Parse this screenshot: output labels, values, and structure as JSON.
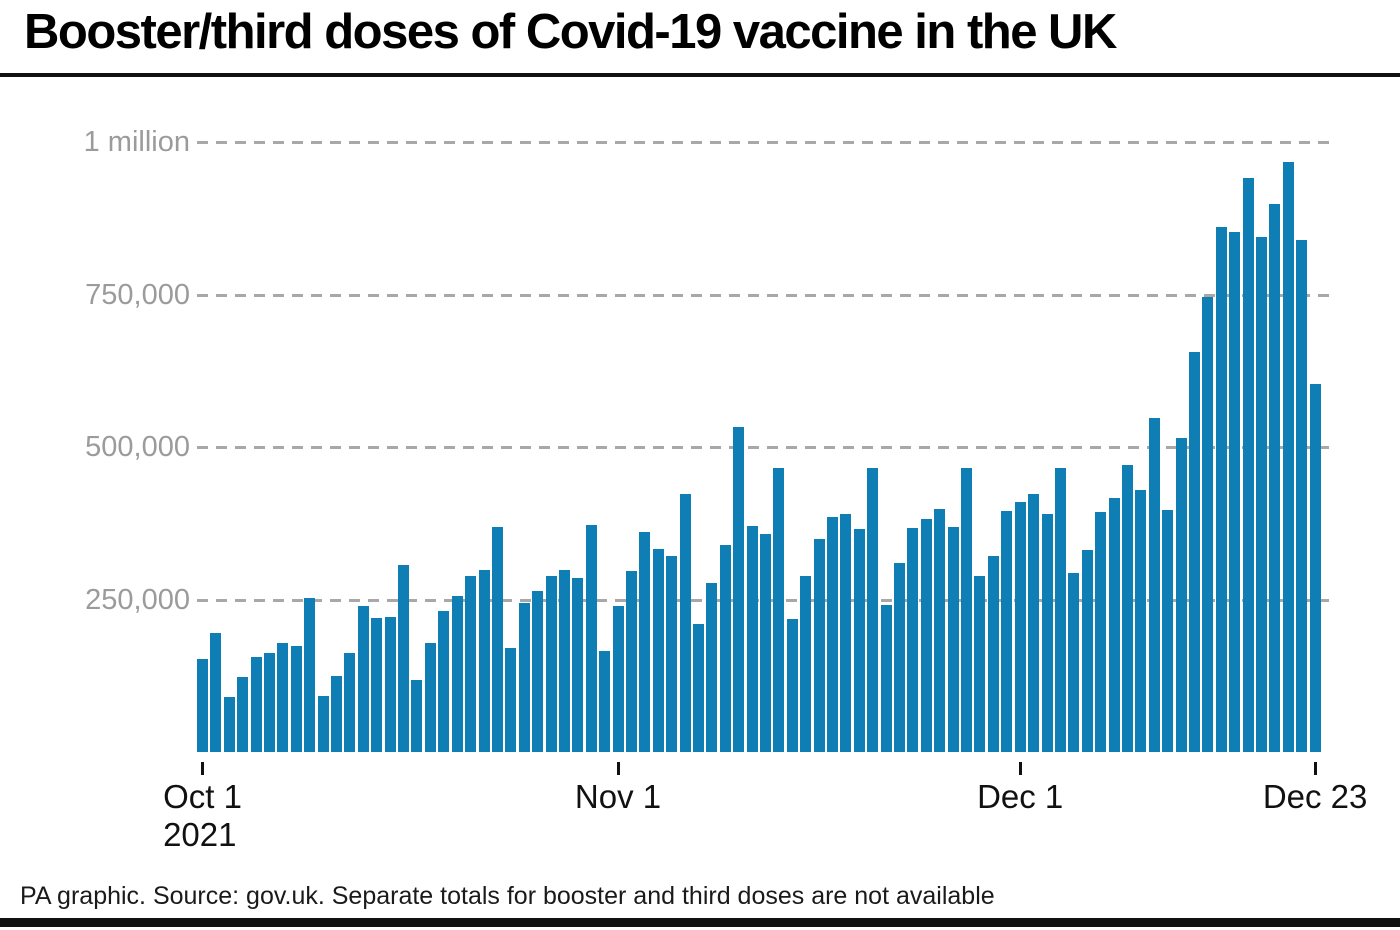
{
  "page": {
    "title": "Booster/third doses of Covid-19 vaccine in the UK",
    "footer": "PA graphic. Source: gov.uk. Separate totals for booster and third doses are not available"
  },
  "colors": {
    "bar": "#0e7eb4",
    "gridline": "#a8a8a8",
    "y_label_text": "#9b9b9b",
    "axis_text": "#111111",
    "rule": "#111111"
  },
  "chart_data": {
    "type": "bar",
    "title": "Booster/third doses of Covid-19 vaccine in the UK",
    "xlabel": "",
    "ylabel": "",
    "ylim": [
      0,
      1000000
    ],
    "grid": "horizontal dashed, behind bars",
    "legend": "none",
    "y_ticks": [
      {
        "label": "1 million",
        "value": 1000000
      },
      {
        "label": "750,000",
        "value": 750000
      },
      {
        "label": "500,000",
        "value": 500000
      },
      {
        "label": "250,000",
        "value": 250000
      }
    ],
    "x_ticks": [
      {
        "label": "Oct 1",
        "sublabel": "2021",
        "index": 0
      },
      {
        "label": "Nov 1",
        "sublabel": "",
        "index": 31
      },
      {
        "label": "Dec 1",
        "sublabel": "",
        "index": 61
      },
      {
        "label": "Dec 23",
        "sublabel": "",
        "index": 83
      }
    ],
    "x": [
      "Oct 1",
      "Oct 2",
      "Oct 3",
      "Oct 4",
      "Oct 5",
      "Oct 6",
      "Oct 7",
      "Oct 8",
      "Oct 9",
      "Oct 10",
      "Oct 11",
      "Oct 12",
      "Oct 13",
      "Oct 14",
      "Oct 15",
      "Oct 16",
      "Oct 17",
      "Oct 18",
      "Oct 19",
      "Oct 20",
      "Oct 21",
      "Oct 22",
      "Oct 23",
      "Oct 24",
      "Oct 25",
      "Oct 26",
      "Oct 27",
      "Oct 28",
      "Oct 29",
      "Oct 30",
      "Oct 31",
      "Nov 1",
      "Nov 2",
      "Nov 3",
      "Nov 4",
      "Nov 5",
      "Nov 6",
      "Nov 7",
      "Nov 8",
      "Nov 9",
      "Nov 10",
      "Nov 11",
      "Nov 12",
      "Nov 13",
      "Nov 14",
      "Nov 15",
      "Nov 16",
      "Nov 17",
      "Nov 18",
      "Nov 19",
      "Nov 20",
      "Nov 21",
      "Nov 22",
      "Nov 23",
      "Nov 24",
      "Nov 25",
      "Nov 26",
      "Nov 27",
      "Nov 28",
      "Nov 29",
      "Nov 30",
      "Dec 1",
      "Dec 2",
      "Dec 3",
      "Dec 4",
      "Dec 5",
      "Dec 6",
      "Dec 7",
      "Dec 8",
      "Dec 9",
      "Dec 10",
      "Dec 11",
      "Dec 12",
      "Dec 13",
      "Dec 14",
      "Dec 15",
      "Dec 16",
      "Dec 17",
      "Dec 18",
      "Dec 19",
      "Dec 20",
      "Dec 21",
      "Dec 22",
      "Dec 23"
    ],
    "values": [
      153000,
      195000,
      90000,
      123000,
      156000,
      162000,
      178000,
      174000,
      252000,
      92000,
      124000,
      163000,
      239000,
      220000,
      222000,
      306000,
      118000,
      178000,
      232000,
      256000,
      289000,
      298000,
      369000,
      170000,
      244000,
      264000,
      288000,
      298000,
      285000,
      372000,
      165000,
      240000,
      296000,
      360000,
      333000,
      322000,
      423000,
      210000,
      277000,
      339000,
      533000,
      371000,
      358000,
      465000,
      218000,
      289000,
      350000,
      386000,
      390000,
      366000,
      466000,
      241000,
      310000,
      367000,
      382000,
      398000,
      369000,
      466000,
      288000,
      321000,
      395000,
      410000,
      423000,
      391000,
      466000,
      293000,
      332000,
      393000,
      416000,
      470000,
      429000,
      548000,
      397000,
      515000,
      656000,
      746000,
      860000,
      852000,
      941000,
      845000,
      898000,
      968000,
      840000,
      603000
    ]
  }
}
